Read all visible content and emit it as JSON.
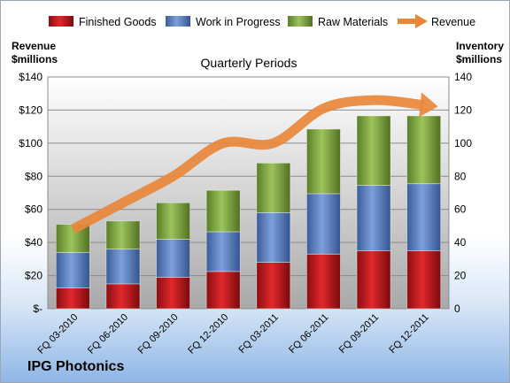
{
  "chart_data": {
    "type": "bar",
    "stacked": true,
    "company": "IPG Photonics",
    "plot_title": "Quarterly Periods",
    "left_axis_label": [
      "Revenue",
      "$millions"
    ],
    "right_axis_label": [
      "Inventory",
      "$millions"
    ],
    "categories": [
      "FQ 03-2010",
      "FQ 06-2010",
      "FQ 09-2010",
      "FQ 12-2010",
      "FQ 03-2011",
      "FQ 06-2011",
      "FQ 09-2011",
      "FQ 12-2011"
    ],
    "series": [
      {
        "name": "Finished Goods",
        "color": "#c0151c",
        "values": [
          12.5,
          15,
          19,
          22.5,
          28,
          33,
          35,
          35
        ]
      },
      {
        "name": "Work in Progress",
        "color": "#4f78c0",
        "values": [
          21.5,
          21,
          23,
          24,
          30,
          36.5,
          39.5,
          40.5
        ]
      },
      {
        "name": "Raw Materials",
        "color": "#78a03a",
        "values": [
          17,
          17,
          22,
          25,
          30,
          39,
          42,
          41
        ]
      }
    ],
    "line_series": {
      "name": "Revenue",
      "color": "#e8873a",
      "values": [
        48,
        64,
        80,
        100,
        100,
        121,
        126,
        123
      ]
    },
    "left_ticks": [
      "$-",
      "$20",
      "$40",
      "$60",
      "$80",
      "$100",
      "$120",
      "$140"
    ],
    "right_ticks": [
      "0",
      "20",
      "40",
      "60",
      "80",
      "100",
      "120",
      "140"
    ],
    "ylim": [
      0,
      140
    ],
    "grid": true,
    "legend_position": "top"
  }
}
